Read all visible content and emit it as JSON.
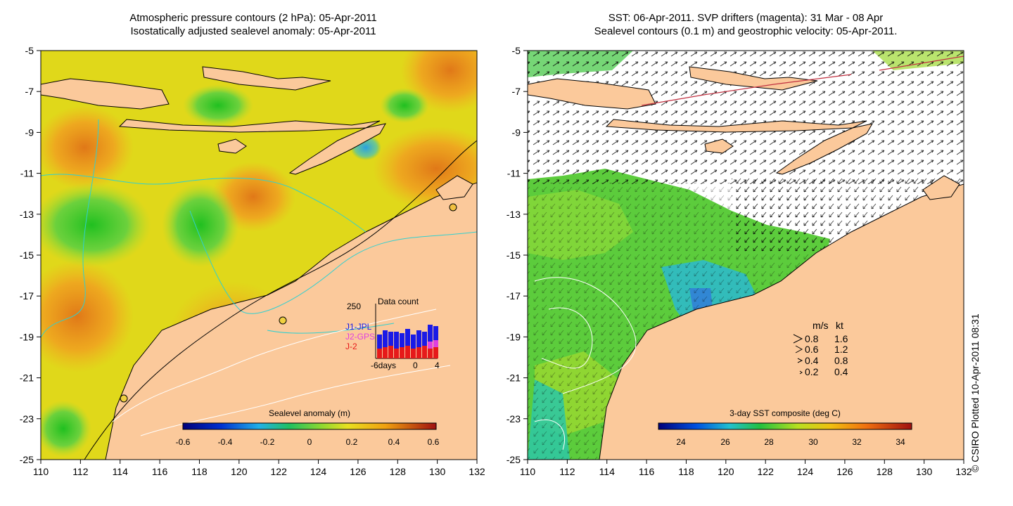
{
  "left_panel": {
    "title_line1": "Atmospheric pressure contours (2 hPa): 05-Apr-2011",
    "title_line2": "Isostatically adjusted sealevel anomaly: 05-Apr-2011",
    "colorbar": {
      "label": "Sealevel anomaly (m)",
      "ticks": [
        "-0.6",
        "-0.4",
        "-0.2",
        "0",
        "0.2",
        "0.4",
        "0.6"
      ],
      "range": [
        -0.6,
        0.6
      ]
    },
    "inset": {
      "title": "Data count",
      "ymax_label": "250",
      "series": [
        {
          "name": "J1-JPL",
          "color": "#1a1ae6"
        },
        {
          "name": "J2-GPS",
          "color": "#e040e0"
        },
        {
          "name": "J-2",
          "color": "#e61a1a"
        }
      ],
      "xtick_labels": [
        "-6days",
        "0",
        "4"
      ]
    }
  },
  "right_panel": {
    "title_line1": "SST: 06-Apr-2011. SVP drifters (magenta): 31 Mar - 08 Apr",
    "title_line2": "Sealevel contours (0.1 m) and geostrophic velocity: 05-Apr-2011.",
    "colorbar": {
      "label": "3-day SST composite (deg C)",
      "ticks": [
        "24",
        "26",
        "28",
        "30",
        "32",
        "34"
      ],
      "range": [
        23,
        34.5
      ]
    },
    "speed_legend": {
      "header_ms": "m/s",
      "header_kt": "kt",
      "rows": [
        {
          "ms": "0.8",
          "kt": "1.6"
        },
        {
          "ms": "0.6",
          "kt": "1.2"
        },
        {
          "ms": "0.4",
          "kt": "0.8"
        },
        {
          "ms": "0.2",
          "kt": "0.4"
        }
      ]
    }
  },
  "axes": {
    "x_ticks": [
      "110",
      "112",
      "114",
      "116",
      "118",
      "120",
      "122",
      "124",
      "126",
      "128",
      "130",
      "132"
    ],
    "y_ticks": [
      "-5",
      "-7",
      "-9",
      "-11",
      "-13",
      "-15",
      "-17",
      "-19",
      "-21",
      "-23",
      "-25"
    ]
  },
  "credit": "© CSIRO Plotted 10-Apr-2011 08:31",
  "colors": {
    "land": "#fbc99b",
    "anomaly_base": "#e6d61a",
    "sst_green": "#3cc43c"
  }
}
